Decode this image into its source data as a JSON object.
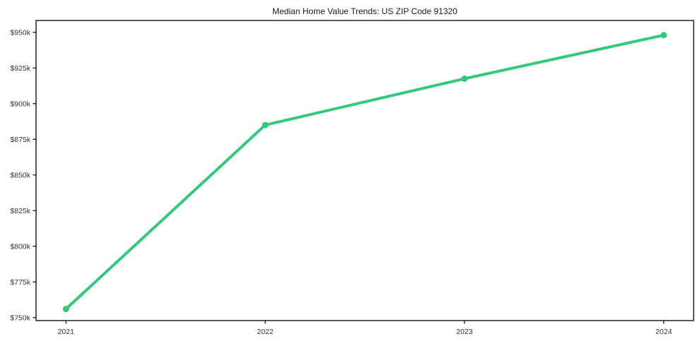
{
  "chart_data": {
    "type": "line",
    "title": "Median Home Value Trends: US ZIP Code 91320",
    "x": [
      2021,
      2022,
      2023,
      2024
    ],
    "xtick_labels": [
      "2021",
      "2022",
      "2023",
      "2024"
    ],
    "series": [
      {
        "name": "Median Home Value",
        "values": [
          756000,
          885000,
          917500,
          948000
        ]
      }
    ],
    "yticks": {
      "values": [
        750000,
        775000,
        800000,
        825000,
        850000,
        875000,
        900000,
        925000,
        950000
      ],
      "labels": [
        "$750k",
        "$775k",
        "$800k",
        "$825k",
        "$850k",
        "$875k",
        "$900k",
        "$925k",
        "$950k"
      ]
    },
    "xlim": [
      2020.85,
      2024.15
    ],
    "ylim": [
      747900,
      958300
    ],
    "grid": false,
    "legend": false,
    "marker": "circle",
    "colors": {
      "line": "#34c87d",
      "marker": "#34c87d",
      "axis": "#000000",
      "tick_text": "#333333",
      "title_text": "#1a1a1a",
      "background": "#ffffff"
    }
  }
}
